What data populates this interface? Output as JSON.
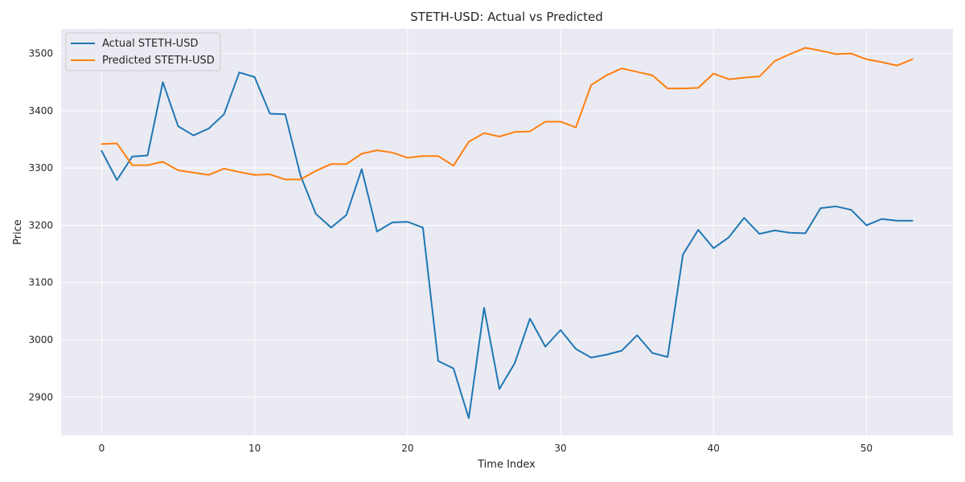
{
  "chart_data": {
    "type": "line",
    "title": "STETH-USD: Actual vs Predicted",
    "xlabel": "Time Index",
    "ylabel": "Price",
    "xlim": [
      -2.65,
      55.65
    ],
    "ylim": [
      2833,
      3543
    ],
    "xticks": [
      0,
      10,
      20,
      30,
      40,
      50
    ],
    "yticks": [
      2900,
      3000,
      3100,
      3200,
      3300,
      3400,
      3500
    ],
    "grid": true,
    "legend_position": "top-left",
    "series": [
      {
        "name": "Actual STETH-USD",
        "color": "#1f77b4",
        "values": [
          3330,
          3279,
          3320,
          3322,
          3450,
          3373,
          3357,
          3369,
          3394,
          3467,
          3459,
          3395,
          3394,
          3287,
          3220,
          3196,
          3218,
          3298,
          3189,
          3205,
          3206,
          3196,
          2963,
          2950,
          2863,
          3056,
          2914,
          2959,
          3037,
          2988,
          3017,
          2984,
          2969,
          2974,
          2981,
          3008,
          2977,
          2970,
          3149,
          3192,
          3160,
          3179,
          3213,
          3185,
          3191,
          3187,
          3186,
          3230,
          3233,
          3227,
          3200,
          3211,
          3208,
          3208
        ]
      },
      {
        "name": "Predicted STETH-USD",
        "color": "#ff7f0e",
        "values": [
          3342,
          3343,
          3305,
          3305,
          3311,
          3296,
          3292,
          3288,
          3299,
          3293,
          3288,
          3289,
          3280,
          3280,
          3295,
          3307,
          3307,
          3325,
          3331,
          3327,
          3318,
          3321,
          3321,
          3304,
          3346,
          3361,
          3355,
          3363,
          3364,
          3381,
          3381,
          3371,
          3445,
          3462,
          3474,
          3468,
          3462,
          3439,
          3439,
          3440,
          3465,
          3455,
          3458,
          3460,
          3487,
          3499,
          3510,
          3505,
          3499,
          3500,
          3490,
          3485,
          3479,
          3490
        ]
      }
    ]
  }
}
